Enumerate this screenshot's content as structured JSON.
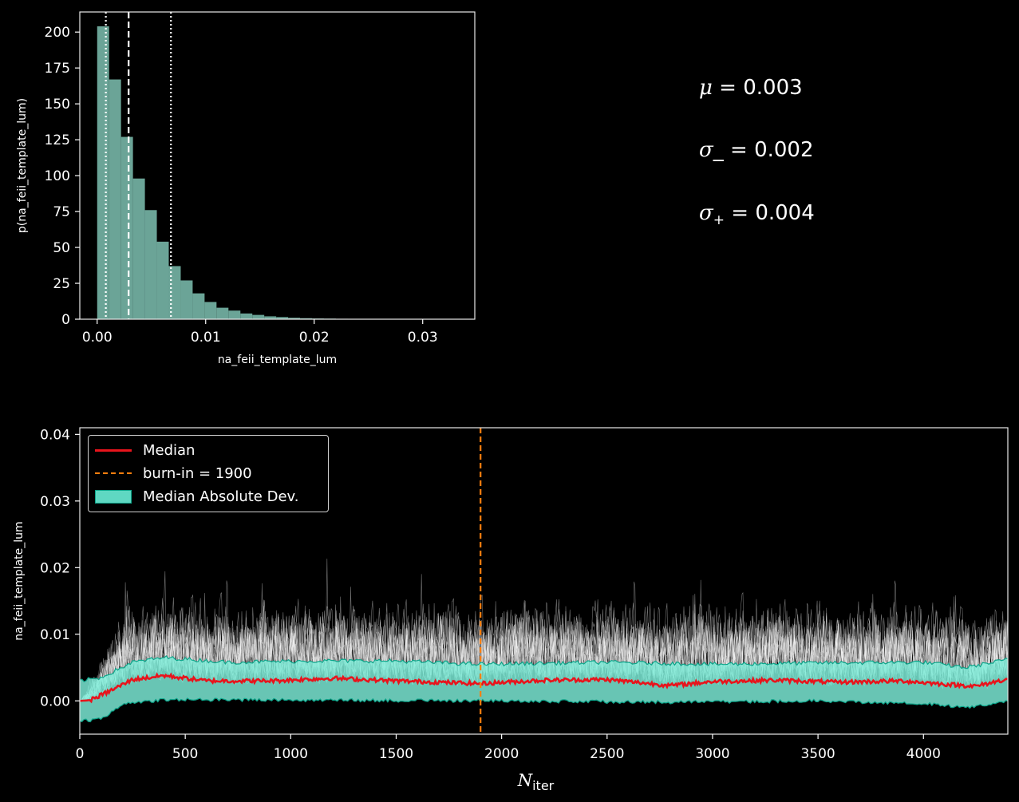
{
  "chart_data": [
    {
      "type": "bar",
      "xlabel": "na_feii_template_lum",
      "ylabel": "p(na_feii_template_lum)",
      "xlim": [
        -0.0016,
        0.0348
      ],
      "ylim": [
        0,
        214
      ],
      "xticks": [
        0.0,
        0.01,
        0.02,
        0.03
      ],
      "xtick_labels": [
        "0.00",
        "0.01",
        "0.02",
        "0.03"
      ],
      "yticks": [
        0,
        25,
        50,
        75,
        100,
        125,
        150,
        175,
        200
      ],
      "yticks_labels": [
        "0",
        "25",
        "50",
        "75",
        "100",
        "125",
        "150",
        "175",
        "200"
      ],
      "bin_width": 0.0011,
      "bin_starts": [
        0.0,
        0.0011,
        0.0022,
        0.0033,
        0.0044,
        0.0055,
        0.0066,
        0.0077,
        0.0088,
        0.0099,
        0.011,
        0.0121,
        0.0132,
        0.0143,
        0.0154,
        0.0165,
        0.0176,
        0.0187,
        0.0198,
        0.0209,
        0.022,
        0.0231,
        0.0242,
        0.0253,
        0.0264,
        0.0275,
        0.0286,
        0.0297,
        0.0308,
        0.0319
      ],
      "values": [
        204,
        167,
        127,
        98,
        76,
        54,
        37,
        27,
        18,
        12,
        8,
        6,
        4,
        3,
        2,
        1.5,
        1,
        0.7,
        0.5,
        0.4,
        0.3,
        0.2,
        0.2,
        0.1,
        0.1,
        0.1,
        0.05,
        0.05,
        0.05,
        0.05
      ],
      "bar_color": "#6ba497",
      "median_line": 0.0029,
      "lower_line": 0.0008,
      "upper_line": 0.0068
    },
    {
      "type": "line",
      "xlabel_main": "N",
      "xlabel_sub": "iter",
      "ylabel": "na_feii_template_lum",
      "xlim": [
        0,
        4400
      ],
      "ylim": [
        -0.005,
        0.041
      ],
      "xticks": [
        0,
        500,
        1000,
        1500,
        2000,
        2500,
        3000,
        3500,
        4000
      ],
      "xtick_labels": [
        "0",
        "500",
        "1000",
        "1500",
        "2000",
        "2500",
        "3000",
        "3500",
        "4000"
      ],
      "yticks": [
        0.0,
        0.01,
        0.02,
        0.03,
        0.04
      ],
      "ytick_labels": [
        "0.00",
        "0.01",
        "0.02",
        "0.03",
        "0.04"
      ],
      "burn_in": 1900,
      "median_keypoints": [
        [
          0,
          0.0
        ],
        [
          50,
          0.0001
        ],
        [
          150,
          0.0016
        ],
        [
          250,
          0.0032
        ],
        [
          400,
          0.0038
        ],
        [
          600,
          0.003
        ],
        [
          900,
          0.003
        ],
        [
          1200,
          0.0034
        ],
        [
          1500,
          0.003
        ],
        [
          1900,
          0.0026
        ],
        [
          2200,
          0.0031
        ],
        [
          2500,
          0.0032
        ],
        [
          2800,
          0.0023
        ],
        [
          3000,
          0.0029
        ],
        [
          3300,
          0.0031
        ],
        [
          3600,
          0.0028
        ],
        [
          3900,
          0.003
        ],
        [
          4100,
          0.0025
        ],
        [
          4250,
          0.0022
        ],
        [
          4400,
          0.0033
        ]
      ],
      "mad_upper_keypoints": [
        [
          0,
          0.003
        ],
        [
          100,
          0.0035
        ],
        [
          250,
          0.0058
        ],
        [
          400,
          0.0065
        ],
        [
          700,
          0.0058
        ],
        [
          1100,
          0.006
        ],
        [
          1500,
          0.006
        ],
        [
          1900,
          0.0055
        ],
        [
          2500,
          0.0058
        ],
        [
          3000,
          0.0055
        ],
        [
          3500,
          0.0057
        ],
        [
          4000,
          0.0058
        ],
        [
          4200,
          0.005
        ],
        [
          4400,
          0.0062
        ]
      ],
      "mad_lower_keypoints": [
        [
          0,
          -0.003
        ],
        [
          100,
          -0.0028
        ],
        [
          200,
          -0.0005
        ],
        [
          400,
          0.0002
        ],
        [
          1000,
          0.0001
        ],
        [
          1900,
          0.0
        ],
        [
          2800,
          -0.0002
        ],
        [
          3500,
          0.0
        ],
        [
          4000,
          -0.0004
        ],
        [
          4200,
          -0.001
        ],
        [
          4400,
          0.0
        ]
      ],
      "colors": {
        "median": "#e8141c",
        "burn_in": "#ff7f0e",
        "mad_fill": "#7ff0dc",
        "mad_edge": "#0ca58a",
        "walkers": "#ffffff"
      },
      "legend": [
        {
          "label": "Median",
          "kind": "line-solid"
        },
        {
          "label": "burn-in = 1900",
          "kind": "line-dashed"
        },
        {
          "label": "Median Absolute Dev.",
          "kind": "patch"
        }
      ]
    }
  ],
  "stats": {
    "mu_symbol": "μ",
    "mu_text": " = 0.003",
    "sigma_minus_symbol": "σ",
    "sigma_minus_text": "_ = 0.002",
    "sigma_plus_symbol": "σ",
    "sigma_plus_sub": "+",
    "sigma_plus_text": " = 0.004"
  }
}
